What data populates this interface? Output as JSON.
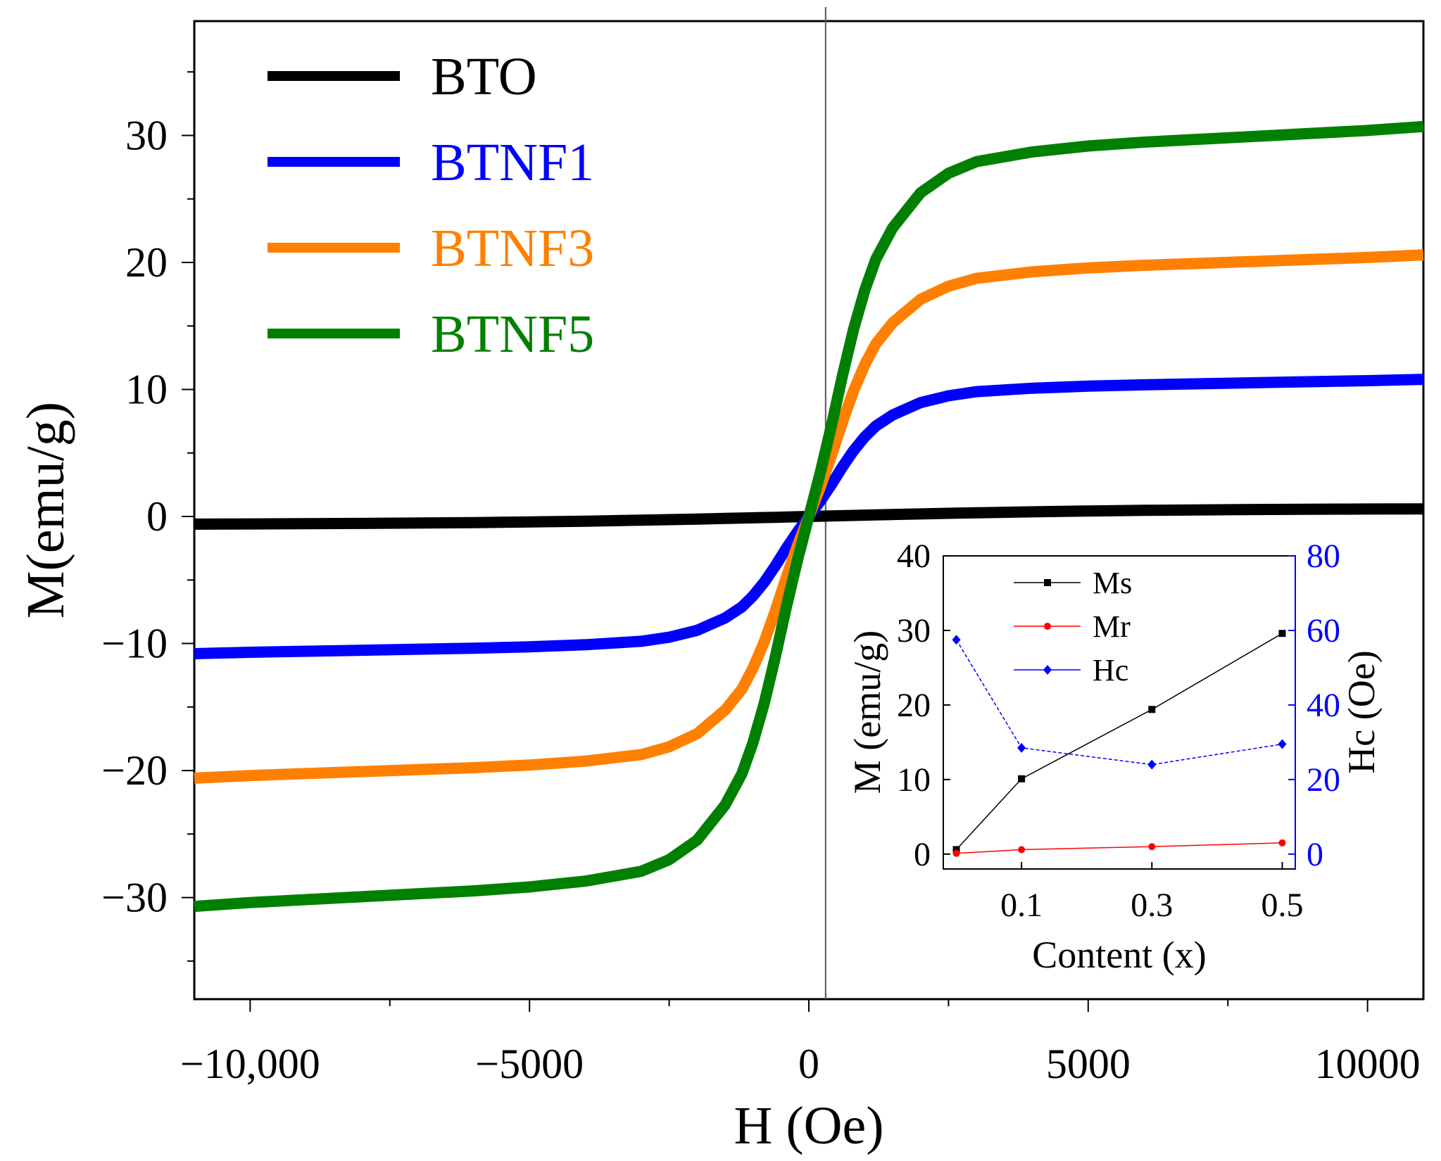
{
  "chart_data": [
    {
      "type": "line",
      "title": "",
      "xlabel": "H (Oe)",
      "ylabel": "M(emu/g)",
      "xlim": [
        -11000,
        11000
      ],
      "ylim": [
        -38,
        39
      ],
      "x_ticks": [
        -10000,
        -5000,
        0,
        5000,
        10000
      ],
      "x_tick_labels": [
        "−10,000",
        "−5000",
        "0",
        "5000",
        "10000"
      ],
      "y_ticks": [
        -30,
        -20,
        -10,
        0,
        10,
        20,
        30
      ],
      "y_tick_labels": [
        "−30",
        "−20",
        "−10",
        "0",
        "10",
        "20",
        "30"
      ],
      "reference_line_x": 300,
      "legend_position": "top-left",
      "series": [
        {
          "name": "BTO",
          "color": "#000000",
          "ms": 0.6,
          "hk": 2500
        },
        {
          "name": "BTNF1",
          "color": "#0000ff",
          "ms": 10.8,
          "hk": 1300
        },
        {
          "name": "BTNF3",
          "color": "#ff8000",
          "ms": 20.6,
          "hk": 1100
        },
        {
          "name": "BTNF5",
          "color": "#008000",
          "ms": 30.7,
          "hk": 1050
        }
      ],
      "curve_points": {
        "h": [
          -11000,
          -10000,
          -8000,
          -6000,
          -5000,
          -4000,
          -3000,
          -2500,
          -2000,
          -1500,
          -1200,
          -1000,
          -800,
          -600,
          -400,
          -200,
          0,
          200,
          400,
          600,
          800,
          1000,
          1200,
          1500,
          2000,
          2500,
          3000,
          4000,
          5000,
          6000,
          8000,
          10000,
          11000
        ],
        "shape": [
          -1.0,
          -0.99,
          -0.975,
          -0.96,
          -0.95,
          -0.935,
          -0.91,
          -0.88,
          -0.83,
          -0.74,
          -0.66,
          -0.58,
          -0.48,
          -0.36,
          -0.23,
          -0.11,
          0.0,
          0.11,
          0.23,
          0.36,
          0.48,
          0.58,
          0.66,
          0.74,
          0.83,
          0.88,
          0.91,
          0.935,
          0.95,
          0.96,
          0.975,
          0.99,
          1.0
        ]
      }
    },
    {
      "type": "line",
      "title": "",
      "xlabel": "Content (x)",
      "ylabel": "M (emu/g)",
      "ylabel_right": "Hc (Oe)",
      "x": [
        0,
        0.1,
        0.3,
        0.5
      ],
      "xlim": [
        -0.02,
        0.52
      ],
      "x_ticks": [
        0.1,
        0.3,
        0.5
      ],
      "x_tick_labels": [
        "0.1",
        "0.3",
        "0.5"
      ],
      "ylim": [
        -2,
        40
      ],
      "y_ticks": [
        0,
        10,
        20,
        30,
        40
      ],
      "y_tick_labels": [
        "0",
        "10",
        "20",
        "30",
        "40"
      ],
      "ylim_right": [
        -4,
        80
      ],
      "y_ticks_right": [
        0,
        20,
        40,
        60,
        80
      ],
      "y_tick_labels_right": [
        "0",
        "20",
        "40",
        "60",
        "80"
      ],
      "legend_position": "top-left",
      "series": [
        {
          "name": "Ms",
          "axis": "left",
          "color": "#000000",
          "marker": "square",
          "values": [
            0.6,
            10.1,
            19.4,
            29.6
          ]
        },
        {
          "name": "Mr",
          "axis": "left",
          "color": "#ff0000",
          "marker": "circle",
          "values": [
            0.1,
            0.6,
            1.0,
            1.5
          ]
        },
        {
          "name": "Hc",
          "axis": "right",
          "color": "#0000ff",
          "marker": "diamond",
          "values": [
            57.5,
            28.5,
            24.0,
            29.5
          ]
        }
      ]
    }
  ]
}
